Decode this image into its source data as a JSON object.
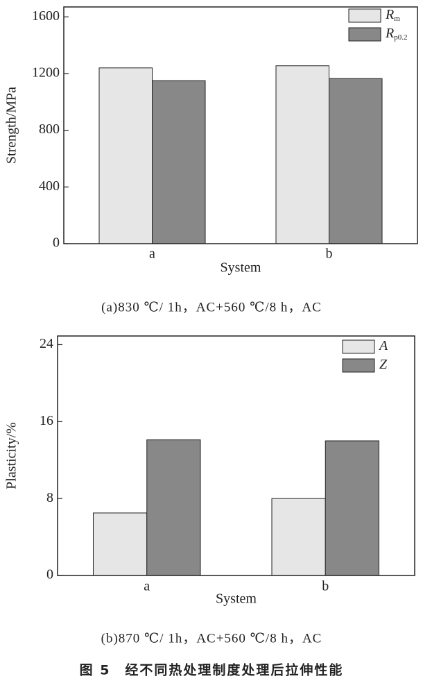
{
  "chart_data": [
    {
      "type": "bar",
      "y_label": "Strength/MPa",
      "x_label": "System",
      "categories": [
        "a",
        "b"
      ],
      "series": [
        {
          "name": "Rm",
          "color": "#e6e6e6",
          "values": [
            1240,
            1255
          ]
        },
        {
          "name": "Rp0.2",
          "color": "#888888",
          "values": [
            1150,
            1165
          ]
        }
      ],
      "ylim": [
        0,
        1670
      ],
      "yticks": [
        0,
        400,
        800,
        1200,
        1600
      ],
      "caption": "(a)830 ℃/ 1h，AC+560 ℃/8 h，AC"
    },
    {
      "type": "bar",
      "y_label": "Plasticity/%",
      "x_label": "System",
      "categories": [
        "a",
        "b"
      ],
      "series": [
        {
          "name": "A",
          "color": "#e6e6e6",
          "values": [
            6.5,
            8.0
          ]
        },
        {
          "name": "Z",
          "color": "#888888",
          "values": [
            14.1,
            14.0
          ]
        }
      ],
      "ylim": [
        0,
        24.9
      ],
      "yticks": [
        0,
        8,
        16,
        24
      ],
      "caption": "(b)870 ℃/ 1h，AC+560 ℃/8 h，AC"
    }
  ],
  "figure_caption": "图 5　经不同热处理制度处理后拉伸性能"
}
